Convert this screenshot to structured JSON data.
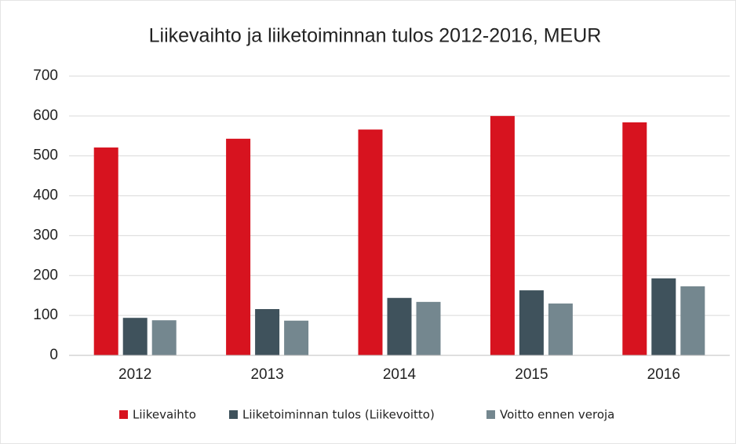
{
  "chart_data": {
    "type": "bar",
    "title": "Liikevaihto ja liiketoiminnan tulos 2012-2016, MEUR",
    "categories": [
      "2012",
      "2013",
      "2014",
      "2015",
      "2016"
    ],
    "series": [
      {
        "name": "Liikevaihto",
        "color": "#d7131f",
        "values": [
          521,
          543,
          566,
          600,
          584
        ]
      },
      {
        "name": "Liiketoiminnan tulos (Liikevoitto)",
        "color": "#3f525c",
        "values": [
          94,
          116,
          144,
          163,
          193
        ]
      },
      {
        "name": "Voitto ennen veroja",
        "color": "#74878f",
        "values": [
          88,
          87,
          134,
          130,
          173
        ]
      }
    ],
    "ylim": [
      0,
      700
    ],
    "yticks": [
      0,
      100,
      200,
      300,
      400,
      500,
      600,
      700
    ],
    "grid": true,
    "legend": "bottom"
  }
}
